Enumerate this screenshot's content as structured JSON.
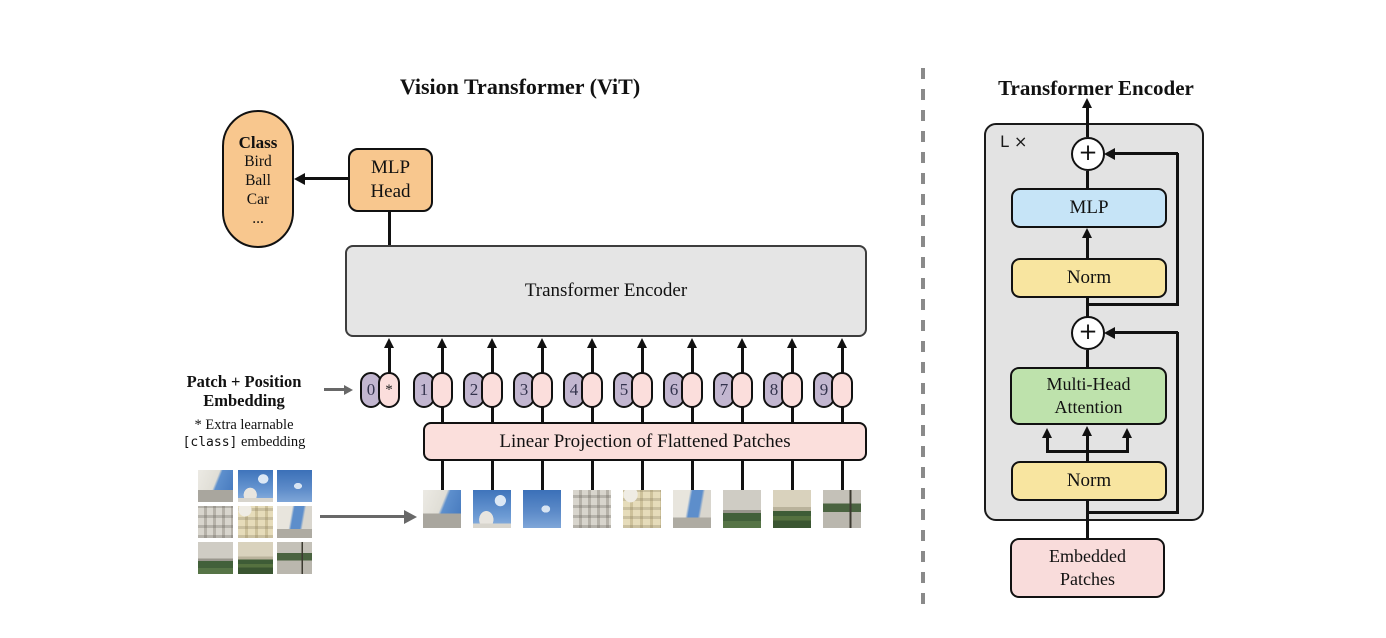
{
  "left": {
    "title": "Vision Transformer (ViT)",
    "class_box": {
      "heading": "Class",
      "items": [
        "Bird",
        "Ball",
        "Car",
        "..."
      ]
    },
    "mlp_head": {
      "line1": "MLP",
      "line2": "Head"
    },
    "encoder_label": "Transformer Encoder",
    "projection_label": "Linear Projection of Flattened Patches",
    "embedding_label": {
      "line1": "Patch + Position",
      "line2": "Embedding"
    },
    "footnote": {
      "line1": "* Extra learnable",
      "code": "[class]",
      "line2_rest": " embedding"
    },
    "tokens": [
      {
        "label": "0",
        "extra": "*"
      },
      {
        "label": "1",
        "extra": ""
      },
      {
        "label": "2",
        "extra": ""
      },
      {
        "label": "3",
        "extra": ""
      },
      {
        "label": "4",
        "extra": ""
      },
      {
        "label": "5",
        "extra": ""
      },
      {
        "label": "6",
        "extra": ""
      },
      {
        "label": "7",
        "extra": ""
      },
      {
        "label": "8",
        "extra": ""
      },
      {
        "label": "9",
        "extra": ""
      }
    ],
    "patch_images": [
      "palace-corner-with-sky",
      "spire-against-sky",
      "blue-sky-cloud",
      "stone-facade",
      "yellow-palace-facade",
      "bell-tower-and-sky",
      "facade-with-dark-bushes",
      "facade-with-hedges",
      "lawn-and-walkway"
    ]
  },
  "right": {
    "title": "Transformer Encoder",
    "loop_label": "L ×",
    "plus": "+",
    "mlp_label": "MLP",
    "norm_top_label": "Norm",
    "mha": {
      "line1": "Multi-Head",
      "line2": "Attention"
    },
    "norm_bottom_label": "Norm",
    "embedded": {
      "line1": "Embedded",
      "line2": "Patches"
    }
  },
  "colors": {
    "orange": "#F8C78E",
    "boxgray": "#E5E5E5",
    "panelgray": "#E3E3E3",
    "pink": "#FBDFDC",
    "purple": "#C2B6D0",
    "tokpink": "#FBDEDC",
    "blue": "#C6E4F7",
    "yellow": "#F8E5A0",
    "green": "#BEE2AC",
    "embpink": "#F9DCDB",
    "line": "#111111",
    "gray": "#686868",
    "dash": "#8a8a8a"
  }
}
